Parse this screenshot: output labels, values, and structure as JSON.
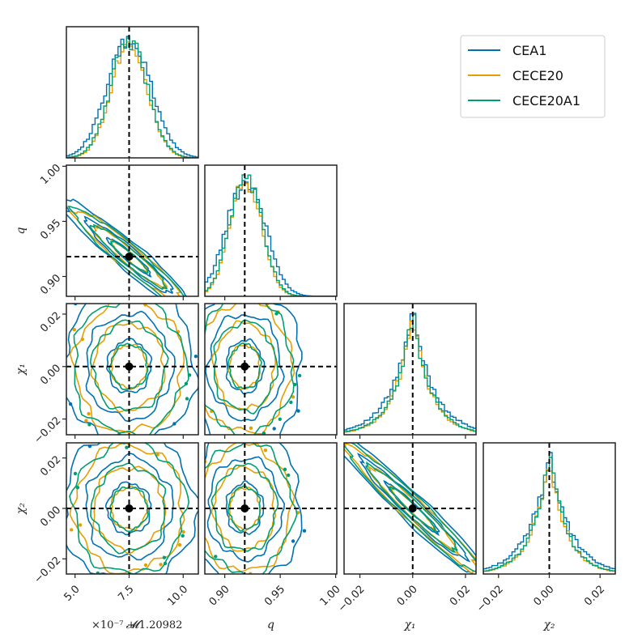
{
  "chart_data": {
    "type": "corner",
    "colors": {
      "CEA1": "#0072b2",
      "CECE20": "#e69f00",
      "CECE20A1": "#009e73",
      "truth": "#000000"
    },
    "legend": {
      "placement": "top-right",
      "entries": [
        "CEA1",
        "CECE20",
        "CECE20A1"
      ]
    },
    "parameters": [
      {
        "key": "Mc",
        "label": "𝓜",
        "offset_label": "×10⁻⁷ + 1.20982",
        "range": [
          4.6,
          10.7
        ],
        "ticks": [
          5.0,
          7.5,
          10.0
        ],
        "tick_labels": [
          "5.0",
          "7.5",
          "10.0"
        ],
        "truth": 7.5,
        "sd": 0.9
      },
      {
        "key": "q",
        "label": "q",
        "range": [
          0.882,
          1.001
        ],
        "ticks": [
          0.9,
          0.95,
          1.0
        ],
        "tick_labels": [
          "0.90",
          "0.95",
          "1.00"
        ],
        "truth": 0.918,
        "sd": 0.015
      },
      {
        "key": "chi1",
        "label": "χ₁",
        "range": [
          -0.026,
          0.024
        ],
        "ticks": [
          -0.02,
          0.0,
          0.02
        ],
        "tick_labels": [
          "−0.02",
          "0.00",
          "0.02"
        ],
        "truth": 0.0,
        "sd": 0.009
      },
      {
        "key": "chi2",
        "label": "χ₂",
        "range": [
          -0.026,
          0.026
        ],
        "ticks": [
          -0.02,
          0.0,
          0.02
        ],
        "tick_labels": [
          "−0.02",
          "0.00",
          "0.02"
        ],
        "truth": 0.0,
        "sd": 0.009
      }
    ],
    "correlations": {
      "1-0": -0.95,
      "3-2": -0.97
    },
    "contour_levels": [
      0.39,
      0.86,
      0.99
    ],
    "series": [
      {
        "name": "CEA1",
        "scale": 1.12
      },
      {
        "name": "CECE20",
        "scale": 0.92
      },
      {
        "name": "CECE20A1",
        "scale": 0.95
      }
    ]
  }
}
